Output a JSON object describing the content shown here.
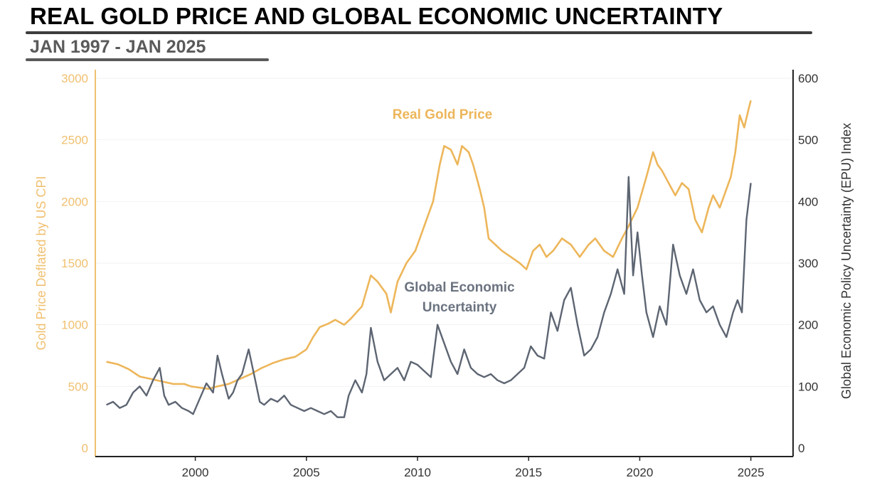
{
  "header": {
    "title": "REAL GOLD PRICE AND GLOBAL ECONOMIC UNCERTAINTY",
    "subtitle": "JAN 1997 - JAN 2025"
  },
  "chart_data": {
    "type": "line",
    "title": "REAL GOLD PRICE AND GLOBAL ECONOMIC UNCERTAINTY",
    "subtitle": "JAN 1997 - JAN 2025",
    "xlabel": "",
    "ylabel_left": "Gold Price Deflated by US CPI",
    "ylabel_right": "Global Economic Policy Uncertainty (EPU) Index",
    "xlim": [
      1995.5,
      2026.9
    ],
    "ylim_left": [
      0,
      3000
    ],
    "ylim_right": [
      0,
      600
    ],
    "x_ticks": [
      "2000",
      "2005",
      "2010",
      "2015",
      "2020",
      "2025"
    ],
    "y_left_ticks": [
      "0",
      "500",
      "1000",
      "1500",
      "2000",
      "2500",
      "3000"
    ],
    "y_right_ticks": [
      "0",
      "100",
      "200",
      "300",
      "400",
      "500",
      "600"
    ],
    "grid": "horizontal",
    "colors": {
      "gold": "#edb65a",
      "epu": "#5d6572",
      "left_axis": "#f0c070",
      "right_axis": "#222222"
    },
    "annotations": {
      "gold": "Real Gold Price",
      "epu_line1": "Global Economic",
      "epu_line2": "Uncertainty"
    },
    "series": [
      {
        "name": "Real Gold Price",
        "axis": "left",
        "x": [
          1996.0,
          1996.5,
          1997.0,
          1997.5,
          1998.0,
          1998.5,
          1999.0,
          1999.5,
          1999.8,
          2000.2,
          2000.6,
          2001.0,
          2001.5,
          2002.0,
          2002.5,
          2003.0,
          2003.5,
          2004.0,
          2004.5,
          2005.0,
          2005.3,
          2005.6,
          2006.0,
          2006.3,
          2006.7,
          2007.0,
          2007.5,
          2007.9,
          2008.2,
          2008.6,
          2008.8,
          2009.1,
          2009.5,
          2009.9,
          2010.2,
          2010.5,
          2010.7,
          2010.8,
          2011.0,
          2011.2,
          2011.5,
          2011.8,
          2012.0,
          2012.3,
          2012.5,
          2012.8,
          2013.0,
          2013.2,
          2013.5,
          2013.8,
          2014.2,
          2014.6,
          2014.9,
          2015.2,
          2015.5,
          2015.8,
          2016.1,
          2016.5,
          2016.9,
          2017.3,
          2017.7,
          2018.0,
          2018.4,
          2018.8,
          2019.2,
          2019.5,
          2019.9,
          2020.3,
          2020.6,
          2020.8,
          2021.0,
          2021.3,
          2021.6,
          2021.9,
          2022.2,
          2022.5,
          2022.8,
          2023.1,
          2023.3,
          2023.6,
          2023.9,
          2024.1,
          2024.3,
          2024.5,
          2024.7,
          2024.9,
          2025.0
        ],
        "values": [
          700,
          680,
          640,
          580,
          560,
          540,
          520,
          520,
          500,
          490,
          480,
          500,
          520,
          560,
          600,
          650,
          690,
          720,
          740,
          800,
          900,
          980,
          1010,
          1040,
          1000,
          1050,
          1150,
          1400,
          1350,
          1250,
          1100,
          1350,
          1500,
          1600,
          1750,
          1900,
          2000,
          2100,
          2300,
          2450,
          2420,
          2300,
          2450,
          2400,
          2300,
          2100,
          1950,
          1700,
          1650,
          1600,
          1550,
          1500,
          1450,
          1600,
          1650,
          1550,
          1600,
          1700,
          1650,
          1550,
          1650,
          1700,
          1600,
          1550,
          1700,
          1800,
          1950,
          2200,
          2400,
          2300,
          2250,
          2150,
          2050,
          2150,
          2100,
          1850,
          1750,
          1950,
          2050,
          1950,
          2100,
          2200,
          2400,
          2700,
          2600,
          2750,
          2820
        ]
      },
      {
        "name": "Global Economic Uncertainty",
        "axis": "right",
        "x": [
          1996.0,
          1996.3,
          1996.6,
          1996.9,
          1997.2,
          1997.5,
          1997.8,
          1998.1,
          1998.4,
          1998.6,
          1998.8,
          1999.1,
          1999.4,
          1999.7,
          1999.9,
          2000.2,
          2000.5,
          2000.8,
          2001.0,
          2001.2,
          2001.5,
          2001.7,
          2001.9,
          2002.1,
          2002.4,
          2002.7,
          2002.9,
          2003.1,
          2003.4,
          2003.7,
          2004.0,
          2004.3,
          2004.6,
          2004.9,
          2005.2,
          2005.5,
          2005.8,
          2006.1,
          2006.4,
          2006.7,
          2006.9,
          2007.2,
          2007.5,
          2007.7,
          2007.9,
          2008.2,
          2008.5,
          2008.8,
          2009.1,
          2009.4,
          2009.7,
          2010.0,
          2010.3,
          2010.6,
          2010.9,
          2011.2,
          2011.5,
          2011.8,
          2012.1,
          2012.4,
          2012.7,
          2013.0,
          2013.3,
          2013.6,
          2013.9,
          2014.2,
          2014.5,
          2014.8,
          2015.1,
          2015.4,
          2015.7,
          2016.0,
          2016.3,
          2016.6,
          2016.9,
          2017.2,
          2017.5,
          2017.8,
          2018.1,
          2018.4,
          2018.7,
          2019.0,
          2019.3,
          2019.5,
          2019.7,
          2019.9,
          2020.1,
          2020.3,
          2020.6,
          2020.9,
          2021.2,
          2021.5,
          2021.8,
          2022.1,
          2022.4,
          2022.7,
          2023.0,
          2023.3,
          2023.6,
          2023.9,
          2024.2,
          2024.4,
          2024.6,
          2024.8,
          2025.0
        ],
        "values": [
          70,
          75,
          65,
          70,
          90,
          100,
          85,
          110,
          130,
          85,
          70,
          75,
          65,
          60,
          55,
          80,
          105,
          90,
          150,
          120,
          80,
          90,
          110,
          120,
          160,
          110,
          75,
          70,
          80,
          75,
          85,
          70,
          65,
          60,
          65,
          60,
          55,
          60,
          50,
          50,
          85,
          110,
          90,
          120,
          195,
          140,
          110,
          120,
          130,
          110,
          140,
          135,
          125,
          115,
          200,
          170,
          140,
          120,
          160,
          130,
          120,
          115,
          120,
          110,
          105,
          110,
          120,
          130,
          165,
          150,
          145,
          220,
          190,
          240,
          260,
          200,
          150,
          160,
          180,
          220,
          250,
          290,
          250,
          440,
          280,
          350,
          280,
          220,
          180,
          230,
          200,
          330,
          280,
          250,
          290,
          240,
          220,
          230,
          200,
          180,
          220,
          240,
          220,
          370,
          430
        ]
      }
    ]
  }
}
